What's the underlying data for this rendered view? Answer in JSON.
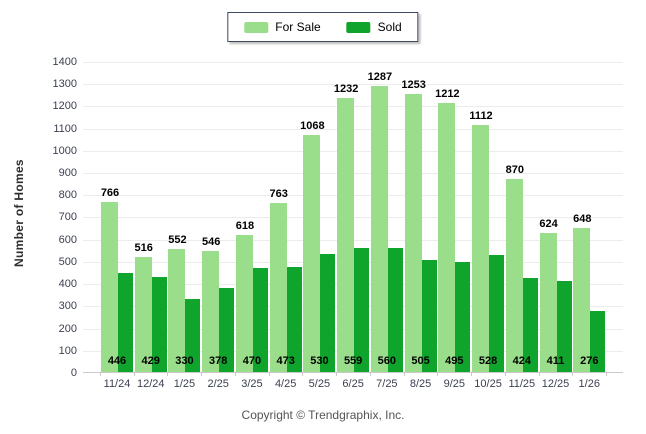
{
  "chart_data": {
    "type": "bar",
    "title": "",
    "categories": [
      "11/24",
      "12/24",
      "1/25",
      "2/25",
      "3/25",
      "4/25",
      "5/25",
      "6/25",
      "7/25",
      "8/25",
      "9/25",
      "10/25",
      "11/25",
      "12/25",
      "1/26"
    ],
    "series": [
      {
        "name": "For Sale",
        "color": "#9add8a",
        "values": [
          766,
          516,
          552,
          546,
          618,
          763,
          1068,
          1232,
          1287,
          1253,
          1212,
          1112,
          870,
          624,
          648
        ]
      },
      {
        "name": "Sold",
        "color": "#0fa42b",
        "values": [
          446,
          429,
          330,
          378,
          470,
          473,
          530,
          559,
          560,
          505,
          495,
          528,
          424,
          411,
          276
        ]
      }
    ],
    "xlabel": "",
    "ylabel": "Number of Homes",
    "ylim": [
      0,
      1400
    ],
    "ytick_step": 100,
    "grid": true,
    "legend_position": "top-center",
    "value_labels": {
      "for_sale": "above bar",
      "sold": "inside bar bottom"
    }
  },
  "colors": {
    "for_sale": "#9add8a",
    "sold": "#0fa42b",
    "gridline": "#ececec",
    "axis_line": "#c9c9c9",
    "tick_text": "#3c4152"
  },
  "footer": {
    "copyright": "Copyright © Trendgraphix, Inc."
  }
}
